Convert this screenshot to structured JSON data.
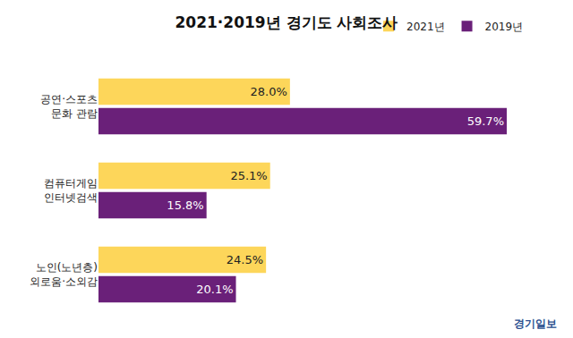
{
  "chart_data": {
    "type": "bar",
    "title": "2021·2019년 경기도 사회조사",
    "orientation": "horizontal",
    "categories": [
      "공연·스포츠\n문화 관람",
      "컴퓨터게임\n인터넷검색",
      "노인(노년층)\n외로움·소외감"
    ],
    "series": [
      {
        "name": "2021년",
        "color": "#FDD65A",
        "values": [
          28.0,
          25.1,
          24.5
        ],
        "value_labels": [
          "28.0%",
          "25.1%",
          "24.5%"
        ]
      },
      {
        "name": "2019년",
        "color": "#6A2079",
        "values": [
          59.7,
          15.8,
          20.1
        ],
        "value_labels": [
          "59.7%",
          "15.8%",
          "20.1%"
        ]
      }
    ],
    "data_labels": true,
    "tick_labels": "y",
    "grid": false,
    "legend": "upper right",
    "source": "경기일보"
  }
}
